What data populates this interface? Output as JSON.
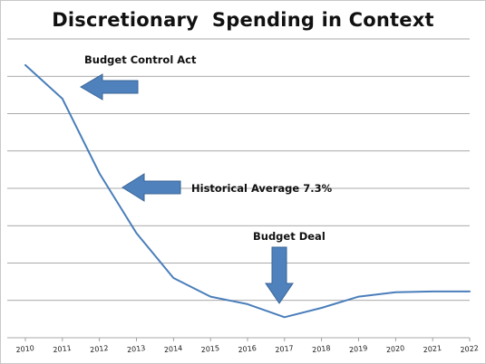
{
  "chart_data": {
    "type": "line",
    "title": "Discretionary  Spending in Context",
    "xlabel": "",
    "ylabel": "",
    "x": [
      "2010",
      "2011",
      "2012",
      "2013",
      "2014",
      "2015",
      "2016",
      "2017",
      "2018",
      "2019",
      "2020",
      "2021",
      "2022"
    ],
    "series": [
      {
        "values": [
          0.93,
          0.84,
          0.64,
          0.48,
          0.36,
          0.31,
          0.29,
          0.255,
          0.28,
          0.31,
          0.322,
          0.324,
          0.324
        ],
        "color": "#4a7ebb"
      }
    ],
    "ylim": [
      0.2,
      1.0
    ],
    "y_ticks_count": 8,
    "grid": true,
    "legend": "none",
    "annotations": [
      {
        "text": "Budget Control Act",
        "arrow_direction": "left",
        "arrow_color": "#4f81bd"
      },
      {
        "text": "Historical Average 7.3%",
        "arrow_direction": "left",
        "arrow_color": "#4f81bd"
      },
      {
        "text": "Budget Deal",
        "arrow_direction": "down",
        "arrow_color": "#4f81bd"
      }
    ]
  }
}
